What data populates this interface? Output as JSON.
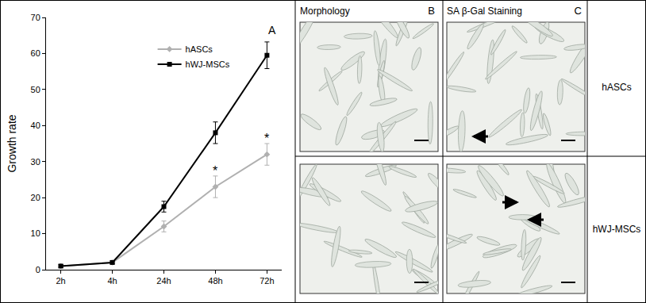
{
  "chart_data": {
    "type": "line",
    "panel_label": "A",
    "y_label": "Growth rate",
    "categories": [
      "2h",
      "4h",
      "24h",
      "48h",
      "72h"
    ],
    "series": [
      {
        "name": "hASCs",
        "color": "#b0b0b0",
        "marker": "diamond",
        "values": [
          1,
          2,
          12,
          23,
          32
        ],
        "error": [
          0.4,
          0.4,
          1.5,
          3,
          3
        ]
      },
      {
        "name": "hWJ-MSCs",
        "color": "#000000",
        "marker": "square",
        "values": [
          1,
          2,
          17.5,
          38,
          59.5
        ],
        "error": [
          0.4,
          0.4,
          1.5,
          3,
          3.7
        ]
      }
    ],
    "annotations": [
      {
        "x": "48h",
        "y": 27.5,
        "text": "*"
      },
      {
        "x": "72h",
        "y": 36.5,
        "text": "*"
      }
    ],
    "ylim": [
      0,
      70
    ],
    "yticks": [
      0,
      10,
      20,
      30,
      40,
      50,
      60,
      70
    ],
    "grid": false,
    "legend": "upper right"
  },
  "image_panels": {
    "columns": [
      {
        "label": "B",
        "title": "Morphology"
      },
      {
        "label": "C",
        "title": "SA β-Gal Staining"
      }
    ],
    "rows": [
      "hASCs",
      "hWJ-MSCs"
    ]
  }
}
